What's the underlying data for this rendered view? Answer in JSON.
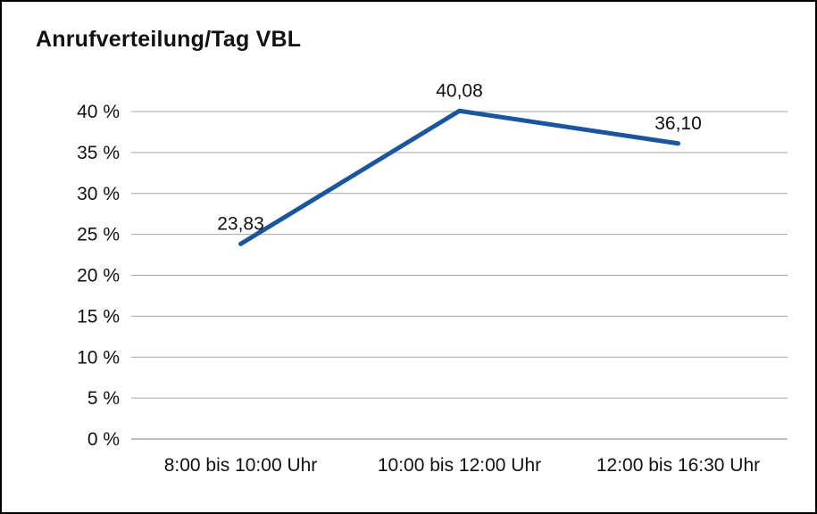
{
  "chart": {
    "background_color": "#ffffff",
    "frame_border_color": "#000000"
  },
  "chart_data": {
    "type": "line",
    "title": "Anrufverteilung/Tag VBL",
    "categories": [
      "8:00 bis 10:00 Uhr",
      "10:00 bis 12:00 Uhr",
      "12:00 bis 16:30 Uhr"
    ],
    "values": [
      23.83,
      40.08,
      36.1
    ],
    "data_labels": [
      "23,83",
      "40,08",
      "36,10"
    ],
    "xlabel": "",
    "ylabel": "",
    "ylim": [
      0,
      40
    ],
    "ytick_step": 5,
    "ytick_labels": [
      "0 %",
      "5 %",
      "10 %",
      "15 %",
      "20 %",
      "25 %",
      "30 %",
      "35 %",
      "40 %"
    ],
    "grid": true,
    "legend": false,
    "line_color": "#1A55A0",
    "gridline_color": "#A6A6A6",
    "axis_color": "#808080",
    "text_color": "#111111"
  }
}
